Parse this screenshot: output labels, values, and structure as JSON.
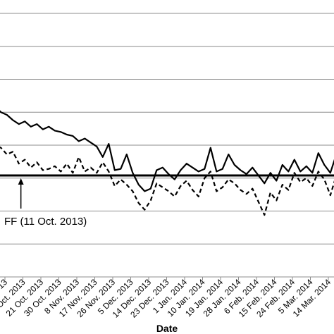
{
  "chart_data": {
    "type": "line",
    "xlabel": "Date",
    "ylabel": "",
    "title": "",
    "grid": "horizontal",
    "x_ticks": [
      "3 Oct. 2013",
      "12 Oct. 2013",
      "21 Oct. 2013",
      "30 Oct. 2013",
      "8 Nov. 2013",
      "17 Nov. 2013",
      "26 Nov. 2013",
      "5 Dec. 2013",
      "14 Dec. 2013",
      "23 Dec. 2013",
      "1 Jan. 2014",
      "10 Jan. 2014",
      "19 Jan. 2014",
      "28 Jan. 2014",
      "6 Feb. 2014",
      "15 Feb. 2014",
      "24 Feb. 2014",
      "5 Mar. 2014",
      "14 Mar. 2014"
    ],
    "annotation": {
      "label": "FF (11 Oct. 2013)",
      "date": "11 Oct. 2013"
    },
    "reference_line": {
      "style": "solid"
    },
    "series": [
      {
        "style": "solid",
        "x": [
          "24 Sep. 2013",
          "27 Sep. 2013",
          "1 Oct. 2013",
          "4 Oct. 2013",
          "7 Oct. 2013",
          "10 Oct. 2013",
          "13 Oct. 2013",
          "16 Oct. 2013",
          "19 Oct. 2013",
          "22 Oct. 2013",
          "25 Oct. 2013",
          "28 Oct. 2013",
          "31 Oct. 2013",
          "3 Nov. 2013",
          "6 Nov. 2013",
          "9 Nov. 2013",
          "12 Nov. 2013",
          "15 Nov. 2013",
          "18 Nov. 2013",
          "21 Nov. 2013",
          "24 Nov. 2013",
          "27 Nov. 2013",
          "30 Nov. 2013",
          "3 Dec. 2013",
          "6 Dec. 2013",
          "9 Dec. 2013",
          "12 Dec. 2013",
          "15 Dec. 2013",
          "18 Dec. 2013",
          "21 Dec. 2013",
          "24 Dec. 2013",
          "27 Dec. 2013",
          "30 Dec. 2013",
          "2 Jan. 2014",
          "5 Jan. 2014",
          "8 Jan. 2014",
          "11 Jan. 2014",
          "14 Jan. 2014",
          "17 Jan. 2014",
          "20 Jan. 2014",
          "23 Jan. 2014",
          "26 Jan. 2014",
          "29 Jan. 2014",
          "1 Feb. 2014",
          "4 Feb. 2014",
          "7 Feb. 2014",
          "10 Feb. 2014",
          "13 Feb. 2014",
          "16 Feb. 2014",
          "19 Feb. 2014",
          "22 Feb. 2014",
          "25 Feb. 2014",
          "28 Feb. 2014",
          "3 Mar. 2014",
          "6 Mar. 2014",
          "9 Mar. 2014",
          "12 Mar. 2014",
          "15 Mar. 2014",
          "18 Mar. 2014",
          "21 Mar. 2014"
        ],
        "values": [
          5.2,
          5.4,
          4.8,
          4.6,
          4.2,
          3.9,
          4.1,
          3.7,
          3.9,
          3.5,
          3.7,
          3.4,
          3.3,
          3.1,
          3.0,
          2.6,
          2.8,
          2.5,
          2.2,
          1.4,
          2.4,
          0.4,
          0.5,
          1.6,
          0.2,
          -0.7,
          -1.2,
          -1.0,
          0.4,
          0.6,
          0.1,
          -0.3,
          0.4,
          0.9,
          0.6,
          0.3,
          0.5,
          2.1,
          0.3,
          0.5,
          1.6,
          0.8,
          0.4,
          0.1,
          0.6,
          0.0,
          -0.6,
          0.2,
          -0.4,
          0.8,
          0.3,
          1.2,
          0.3,
          0.7,
          0.2,
          1.7,
          0.8,
          0.2,
          1.6,
          2.4
        ]
      },
      {
        "style": "dashed",
        "x": [
          "24 Sep. 2013",
          "27 Sep. 2013",
          "1 Oct. 2013",
          "4 Oct. 2013",
          "7 Oct. 2013",
          "10 Oct. 2013",
          "13 Oct. 2013",
          "16 Oct. 2013",
          "19 Oct. 2013",
          "22 Oct. 2013",
          "25 Oct. 2013",
          "28 Oct. 2013",
          "31 Oct. 2013",
          "3 Nov. 2013",
          "6 Nov. 2013",
          "9 Nov. 2013",
          "12 Nov. 2013",
          "15 Nov. 2013",
          "18 Nov. 2013",
          "21 Nov. 2013",
          "24 Nov. 2013",
          "27 Nov. 2013",
          "30 Nov. 2013",
          "3 Dec. 2013",
          "6 Dec. 2013",
          "9 Dec. 2013",
          "12 Dec. 2013",
          "15 Dec. 2013",
          "18 Dec. 2013",
          "21 Dec. 2013",
          "24 Dec. 2013",
          "27 Dec. 2013",
          "30 Dec. 2013",
          "2 Jan. 2014",
          "5 Jan. 2014",
          "8 Jan. 2014",
          "11 Jan. 2014",
          "14 Jan. 2014",
          "17 Jan. 2014",
          "20 Jan. 2014",
          "23 Jan. 2014",
          "26 Jan. 2014",
          "29 Jan. 2014",
          "1 Feb. 2014",
          "4 Feb. 2014",
          "7 Feb. 2014",
          "10 Feb. 2014",
          "13 Feb. 2014",
          "16 Feb. 2014",
          "19 Feb. 2014",
          "22 Feb. 2014",
          "25 Feb. 2014",
          "28 Feb. 2014",
          "3 Mar. 2014",
          "6 Mar. 2014",
          "9 Mar. 2014",
          "12 Mar. 2014",
          "15 Mar. 2014",
          "18 Mar. 2014",
          "21 Mar. 2014"
        ],
        "values": [
          2.8,
          2.4,
          2.1,
          1.6,
          1.8,
          0.9,
          1.2,
          0.6,
          1.0,
          0.4,
          0.5,
          0.7,
          0.3,
          0.9,
          0.2,
          1.4,
          0.3,
          0.6,
          0.2,
          1.0,
          0.3,
          -0.8,
          -0.3,
          -0.7,
          -1.2,
          -2.1,
          -2.6,
          -1.9,
          -0.6,
          -0.9,
          -1.2,
          -1.6,
          -0.8,
          -0.4,
          -1.1,
          -1.6,
          -0.2,
          0.3,
          -1.2,
          -0.9,
          -0.3,
          -0.6,
          -1.1,
          -1.4,
          -1.0,
          -2.0,
          -3.0,
          -1.3,
          -1.9,
          -0.7,
          -1.1,
          0.2,
          -0.5,
          -0.2,
          -0.8,
          0.3,
          -0.3,
          -1.5,
          0.0,
          -0.3
        ]
      }
    ]
  }
}
